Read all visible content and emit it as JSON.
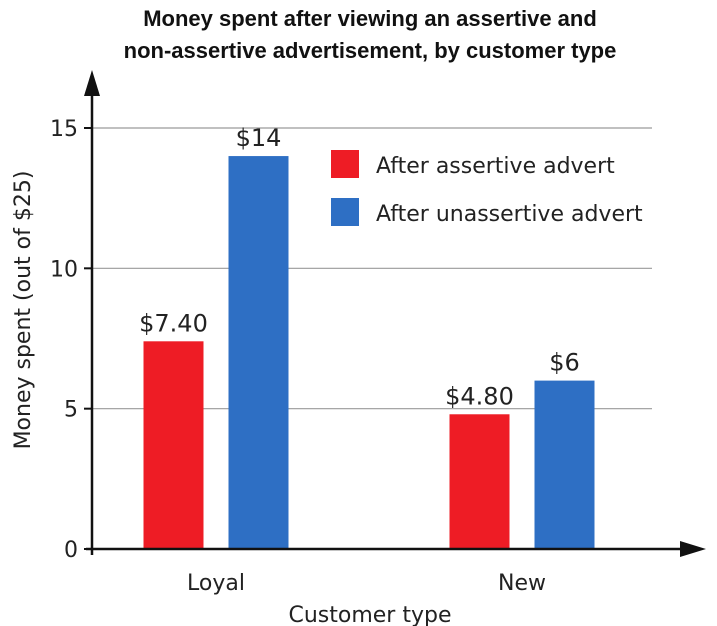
{
  "chart_data": {
    "type": "bar",
    "title": [
      "Money spent after viewing an assertive and",
      "non-assertive advertisement, by customer type"
    ],
    "xlabel": "Customer type",
    "ylabel": "Money spent (out of $25)",
    "categories": [
      "Loyal",
      "New"
    ],
    "ylim": [
      0,
      15
    ],
    "yticks": [
      0,
      5,
      10,
      15
    ],
    "grid": true,
    "legend_position": "top-right",
    "series": [
      {
        "name": "After assertive advert",
        "color": "#ee1c25",
        "values": [
          7.4,
          4.8
        ],
        "labels": [
          "$7.40",
          "$4.80"
        ]
      },
      {
        "name": "After unassertive advert",
        "color": "#2e6fc4",
        "values": [
          14,
          6
        ],
        "labels": [
          "$14",
          "$6"
        ]
      }
    ]
  }
}
